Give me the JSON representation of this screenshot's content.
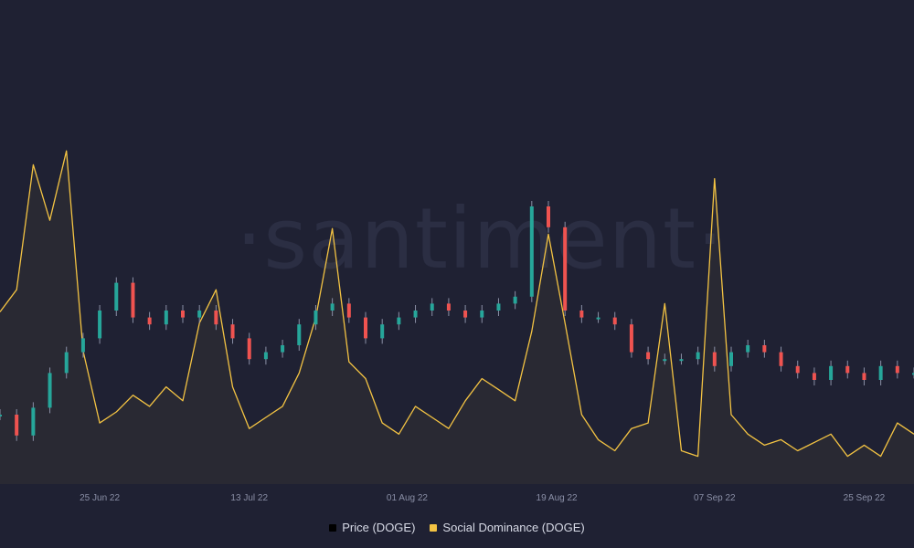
{
  "watermark": "·santiment·",
  "colors": {
    "background": "#1f2133",
    "social": "#f3c343",
    "candle_up": "#26a69a",
    "candle_down": "#ef5350",
    "price_legend": "#000000"
  },
  "legend": [
    {
      "label": "Price (DOGE)",
      "color": "#000000"
    },
    {
      "label": "Social Dominance (DOGE)",
      "color": "#f3c343"
    }
  ],
  "chart_data": {
    "type": "line",
    "x_ticks": [
      "25 Jun 22",
      "13 Jul 22",
      "01 Aug 22",
      "19 Aug 22",
      "07 Sep 22",
      "25 Sep 22"
    ],
    "x_range": [
      "2022-06-13",
      "2022-10-01"
    ],
    "grid": false,
    "legend_position": "bottom-center",
    "series": [
      {
        "name": "Social Dominance (DOGE)",
        "kind": "line",
        "color": "#f3c343",
        "x": [
          "2022-06-13",
          "2022-06-15",
          "2022-06-17",
          "2022-06-19",
          "2022-06-21",
          "2022-06-23",
          "2022-06-25",
          "2022-06-27",
          "2022-06-29",
          "2022-07-01",
          "2022-07-03",
          "2022-07-05",
          "2022-07-07",
          "2022-07-09",
          "2022-07-11",
          "2022-07-13",
          "2022-07-15",
          "2022-07-17",
          "2022-07-19",
          "2022-07-21",
          "2022-07-23",
          "2022-07-25",
          "2022-07-27",
          "2022-07-29",
          "2022-07-31",
          "2022-08-02",
          "2022-08-04",
          "2022-08-06",
          "2022-08-08",
          "2022-08-10",
          "2022-08-12",
          "2022-08-14",
          "2022-08-16",
          "2022-08-18",
          "2022-08-20",
          "2022-08-22",
          "2022-08-24",
          "2022-08-26",
          "2022-08-28",
          "2022-08-30",
          "2022-09-01",
          "2022-09-03",
          "2022-09-05",
          "2022-09-07",
          "2022-09-09",
          "2022-09-11",
          "2022-09-13",
          "2022-09-15",
          "2022-09-17",
          "2022-09-19",
          "2022-09-21",
          "2022-09-23",
          "2022-09-25",
          "2022-09-27",
          "2022-09-29",
          "2022-10-01"
        ],
        "values": [
          0.62,
          0.7,
          1.15,
          0.95,
          1.2,
          0.48,
          0.22,
          0.26,
          0.32,
          0.28,
          0.35,
          0.3,
          0.58,
          0.7,
          0.35,
          0.2,
          0.24,
          0.28,
          0.4,
          0.6,
          0.92,
          0.44,
          0.38,
          0.22,
          0.18,
          0.28,
          0.24,
          0.2,
          0.3,
          0.38,
          0.34,
          0.3,
          0.55,
          0.9,
          0.58,
          0.25,
          0.16,
          0.12,
          0.2,
          0.22,
          0.65,
          0.12,
          0.1,
          1.1,
          0.25,
          0.18,
          0.14,
          0.16,
          0.12,
          0.15,
          0.18,
          0.1,
          0.14,
          0.1,
          0.22,
          0.18
        ]
      },
      {
        "name": "Price (DOGE)",
        "kind": "candlestick",
        "x": [
          "2022-06-13",
          "2022-06-15",
          "2022-06-17",
          "2022-06-19",
          "2022-06-21",
          "2022-06-23",
          "2022-06-25",
          "2022-06-27",
          "2022-06-29",
          "2022-07-01",
          "2022-07-03",
          "2022-07-05",
          "2022-07-07",
          "2022-07-09",
          "2022-07-11",
          "2022-07-13",
          "2022-07-15",
          "2022-07-17",
          "2022-07-19",
          "2022-07-21",
          "2022-07-23",
          "2022-07-25",
          "2022-07-27",
          "2022-07-29",
          "2022-07-31",
          "2022-08-02",
          "2022-08-04",
          "2022-08-06",
          "2022-08-08",
          "2022-08-10",
          "2022-08-12",
          "2022-08-14",
          "2022-08-16",
          "2022-08-18",
          "2022-08-20",
          "2022-08-22",
          "2022-08-24",
          "2022-08-26",
          "2022-08-28",
          "2022-08-30",
          "2022-09-01",
          "2022-09-03",
          "2022-09-05",
          "2022-09-07",
          "2022-09-09",
          "2022-09-11",
          "2022-09-13",
          "2022-09-15",
          "2022-09-17",
          "2022-09-19",
          "2022-09-21",
          "2022-09-23",
          "2022-09-25",
          "2022-09-27",
          "2022-09-29",
          "2022-10-01"
        ],
        "close": [
          0.055,
          0.052,
          0.056,
          0.061,
          0.064,
          0.066,
          0.07,
          0.074,
          0.069,
          0.068,
          0.07,
          0.069,
          0.07,
          0.068,
          0.066,
          0.063,
          0.064,
          0.065,
          0.068,
          0.07,
          0.071,
          0.069,
          0.066,
          0.068,
          0.069,
          0.07,
          0.071,
          0.07,
          0.069,
          0.07,
          0.071,
          0.072,
          0.085,
          0.082,
          0.07,
          0.069,
          0.069,
          0.068,
          0.064,
          0.063,
          0.063,
          0.063,
          0.064,
          0.062,
          0.064,
          0.065,
          0.064,
          0.062,
          0.061,
          0.06,
          0.062,
          0.061,
          0.06,
          0.062,
          0.061,
          0.061
        ]
      }
    ]
  }
}
